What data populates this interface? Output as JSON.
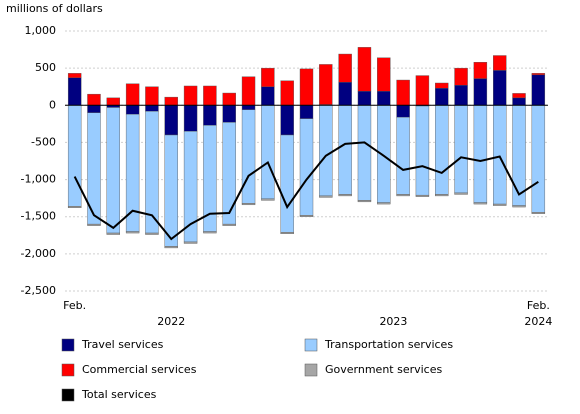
{
  "chart_data": {
    "type": "stacked_bar_line",
    "y_axis_label": "millions of dollars",
    "categories": [
      "Feb.",
      null,
      null,
      null,
      null,
      null,
      null,
      null,
      null,
      null,
      null,
      null,
      null,
      null,
      null,
      null,
      null,
      null,
      null,
      null,
      null,
      null,
      null,
      null,
      "Feb."
    ],
    "years": [
      "2022",
      "2023",
      "2024"
    ],
    "ylim": [
      -2500,
      1000
    ],
    "yticks": [
      {
        "value": 1000,
        "label": "1,000"
      },
      500,
      0,
      -500,
      {
        "value": -1000,
        "label": "-1,000"
      },
      {
        "value": -1500,
        "label": "-1,500"
      },
      {
        "value": -2000,
        "label": "-2,000"
      },
      {
        "value": -2500,
        "label": "-2,500"
      }
    ],
    "grid": true,
    "series": [
      {
        "name": "Travel services",
        "color": "#000080",
        "values": [
          370,
          -100,
          -30,
          -120,
          -80,
          -400,
          -350,
          -270,
          -230,
          -60,
          250,
          -400,
          -180,
          10,
          310,
          190,
          190,
          -160,
          -10,
          230,
          270,
          360,
          470,
          100,
          410
        ]
      },
      {
        "name": "Transportation services",
        "color": "#99ccff",
        "values": [
          -1360,
          -1500,
          -1690,
          -1580,
          -1640,
          -1500,
          -1490,
          -1430,
          -1370,
          -1260,
          -1260,
          -1310,
          -1300,
          -1220,
          -1200,
          -1280,
          -1310,
          -1040,
          -1200,
          -1200,
          -1180,
          -1310,
          -1330,
          -1350,
          -1440
        ]
      },
      {
        "name": "Commercial services",
        "color": "#ff0000",
        "values": [
          60,
          150,
          100,
          290,
          250,
          110,
          260,
          260,
          165,
          385,
          250,
          330,
          490,
          540,
          380,
          590,
          450,
          340,
          400,
          70,
          230,
          220,
          200,
          60,
          20
        ]
      },
      {
        "name": "Government services",
        "color": "#a6a6a6",
        "values": [
          -20,
          -20,
          -20,
          -20,
          -20,
          -20,
          -20,
          -20,
          -20,
          -20,
          -20,
          -20,
          -20,
          -20,
          -20,
          -20,
          -20,
          -20,
          -20,
          -20,
          -20,
          -20,
          -20,
          -20,
          -20
        ]
      },
      {
        "name": "Total services",
        "color": "#000000",
        "kind": "line",
        "values": [
          -960,
          -1480,
          -1650,
          -1420,
          -1480,
          -1800,
          -1600,
          -1460,
          -1450,
          -950,
          -770,
          -1370,
          -1000,
          -680,
          -520,
          -500,
          -680,
          -870,
          -820,
          -910,
          -700,
          -750,
          -690,
          -1200,
          -1030
        ]
      }
    ]
  }
}
